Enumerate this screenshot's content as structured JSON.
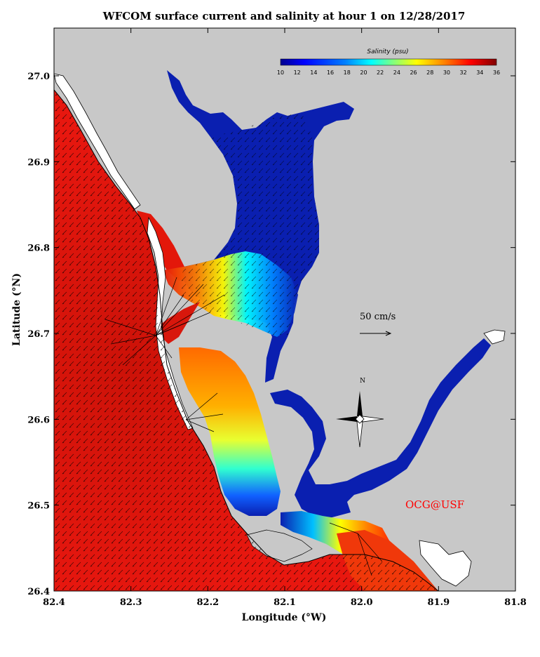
{
  "title": "WFCOM surface current and salinity at hour 1 on 12/28/2017",
  "xaxis": {
    "label": "Longitude (°W)",
    "ticks": [
      "82.4",
      "82.3",
      "82.2",
      "82.1",
      "82.0",
      "81.9",
      "81.8"
    ]
  },
  "yaxis": {
    "label": "Latitude (°N)",
    "ticks": [
      "27.0",
      "26.9",
      "26.8",
      "26.7",
      "26.6",
      "26.5",
      "26.4"
    ]
  },
  "colorbar": {
    "title": "Salinity (psu)",
    "ticks": [
      "10",
      "12",
      "14",
      "16",
      "18",
      "20",
      "22",
      "24",
      "26",
      "28",
      "30",
      "32",
      "34",
      "36"
    ],
    "colors": [
      "#00008f",
      "#0000ff",
      "#0080ff",
      "#00ffff",
      "#80ff80",
      "#ffff00",
      "#ff8000",
      "#ff0000",
      "#800000"
    ]
  },
  "scale_vector": {
    "label": "50 cm/s"
  },
  "compass": {
    "north_label": "N"
  },
  "credit": "OCG@USF",
  "colors": {
    "land": "#c8c8c8",
    "gulf_salinity": "#e8170f",
    "estuary_fresh": "#0a1fb0"
  }
}
